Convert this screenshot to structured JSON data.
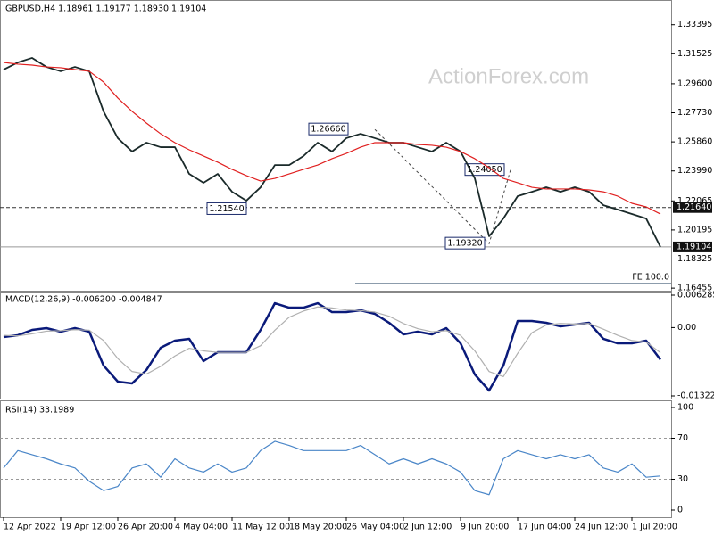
{
  "chart_data": [
    {
      "type": "line",
      "title": "GBPUSD,H4  1.18961 1.19177 1.18930 1.19104",
      "watermark": "ActionForex.com",
      "categories": [
        "12 Apr 2022",
        null,
        null,
        null,
        "19 Apr 12:00",
        null,
        null,
        null,
        "26 Apr 20:00",
        null,
        null,
        null,
        "4 May 04:00",
        null,
        null,
        null,
        "11 May 12:00",
        null,
        null,
        null,
        "18 May 20:00",
        null,
        null,
        null,
        "26 May 04:00",
        null,
        null,
        null,
        "2 Jun 12:00",
        null,
        null,
        null,
        "9 Jun 20:00",
        null,
        null,
        null,
        "17 Jun 04:00",
        null,
        null,
        null,
        "24 Jun 12:00",
        null,
        null,
        null,
        "1 Jul 20:00",
        null,
        null
      ],
      "series": [
        {
          "color": "#1a2a2a",
          "values": [
            1.3051,
            1.3097,
            1.3126,
            1.3068,
            1.304,
            1.3068,
            1.304,
            1.2782,
            1.261,
            1.2524,
            1.2581,
            1.2552,
            1.2552,
            1.238,
            1.2323,
            1.238,
            1.2265,
            1.2208,
            1.2294,
            1.2437,
            1.2437,
            1.2495,
            1.2581,
            1.2524,
            1.261,
            1.2638,
            1.261,
            1.2581,
            1.2581,
            1.2552,
            1.2524,
            1.2581,
            1.2524,
            1.2351,
            1.1979,
            1.2093,
            1.2237,
            1.2265,
            1.2294,
            1.2265,
            1.2294,
            1.2265,
            1.2179,
            1.2151,
            1.2122,
            1.2093,
            1.19104
          ]
        },
        {
          "color": "#e02020",
          "values": [
            1.3097,
            1.3086,
            1.308,
            1.3068,
            1.3063,
            1.3051,
            1.304,
            1.2971,
            1.2868,
            1.2782,
            1.2707,
            1.2638,
            1.2581,
            1.2535,
            1.2495,
            1.2455,
            1.2409,
            1.2369,
            1.2334,
            1.2351,
            1.238,
            1.2409,
            1.2437,
            1.2478,
            1.2512,
            1.2552,
            1.2581,
            1.2581,
            1.2581,
            1.2569,
            1.2564,
            1.2552,
            1.2524,
            1.2478,
            1.242,
            1.2351,
            1.2323,
            1.2294,
            1.2283,
            1.2283,
            1.2283,
            1.2277,
            1.2265,
            1.2237,
            1.2191,
            1.2168,
            1.2122
          ]
        }
      ],
      "ylim": [
        1.1629,
        1.3487
      ],
      "yticks": [
        1.33395,
        1.31525,
        {
          "value": 1.296,
          "label": "1.29600"
        },
        {
          "value": 1.2773,
          "label": "1.27730"
        },
        {
          "value": 1.2586,
          "label": "1.25860"
        },
        {
          "value": 1.2399,
          "label": "1.23990"
        },
        1.22065,
        1.20195,
        1.18325,
        1.16455
      ],
      "levels": [
        {
          "value": 1.2164,
          "label": "1.21640"
        },
        {
          "value": 1.19104,
          "label": "1.19104"
        }
      ],
      "annotations": [
        {
          "value": 1.2666,
          "label": "1.26660"
        },
        {
          "value": 1.2154,
          "label": "1.21540"
        },
        {
          "value": 1.2405,
          "label": "1.24050"
        },
        {
          "value": 1.1932,
          "label": "1.19320"
        }
      ],
      "fe": {
        "value": 1.1675,
        "label": "FE 100.0"
      }
    },
    {
      "type": "line",
      "title": "MACD(12,26,9) -0.006200 -0.004847",
      "series": [
        {
          "color": "#0a1a7a",
          "values": [
            -0.00183,
            -0.00148,
            -0.00045,
            -0.0001,
            -0.00079,
            -0.0001,
            -0.00079,
            -0.00735,
            -0.01046,
            -0.0108,
            -0.00822,
            -0.0039,
            -0.00252,
            -0.00217,
            -0.00649,
            -0.00476,
            -0.00476,
            -0.00476,
            -0.00045,
            0.00473,
            0.00386,
            0.00386,
            0.00473,
            0.003,
            0.003,
            0.00335,
            0.00266,
            0.00093,
            -0.00131,
            -0.00079,
            -0.00131,
            -0.0001,
            -0.00304,
            -0.00908,
            -0.01219,
            -0.00735,
            0.00128,
            0.00128,
            0.00093,
            0.00024,
            0.00059,
            0.00093,
            -0.00217,
            -0.00304,
            -0.00304,
            -0.00252,
            -0.0062
          ]
        },
        {
          "color": "#b0b0b0",
          "values": [
            -0.0015,
            -0.0016,
            -0.0012,
            -0.0007,
            -0.0006,
            -0.0004,
            -0.0005,
            -0.0025,
            -0.006,
            -0.0085,
            -0.009,
            -0.0075,
            -0.0055,
            -0.004,
            -0.0045,
            -0.0048,
            -0.0048,
            -0.0048,
            -0.0035,
            -0.0005,
            0.002,
            0.0032,
            0.004,
            0.0038,
            0.0034,
            0.0033,
            0.003,
            0.0022,
            0.0008,
            -0.0002,
            -0.0008,
            -0.0006,
            -0.0015,
            -0.0045,
            -0.0085,
            -0.0095,
            -0.005,
            -0.001,
            0.0005,
            0.0008,
            0.0007,
            0.0008,
            -0.0003,
            -0.0015,
            -0.0025,
            -0.0028,
            -0.004847
          ]
        }
      ],
      "ylim": [
        -0.013223,
        0.006285
      ],
      "yticks": [
        0.006285,
        {
          "value": 0,
          "label": "0.00"
        },
        -0.013223
      ]
    },
    {
      "type": "line",
      "title": "RSI(14) 33.1989",
      "series": [
        {
          "color": "#4a86c8",
          "values": [
            41,
            58,
            54,
            50,
            45,
            41,
            28,
            19,
            23,
            41,
            45,
            32,
            50,
            41,
            37,
            45,
            37,
            41,
            58,
            67,
            63,
            58,
            58,
            58,
            58,
            63,
            54,
            45,
            50,
            45,
            50,
            45,
            37,
            19,
            15,
            50,
            58,
            54,
            50,
            54,
            50,
            54,
            41,
            37,
            45,
            32,
            33.1989
          ]
        }
      ],
      "ylim": [
        0,
        100
      ],
      "yticks": [
        100,
        70,
        30,
        0
      ],
      "levels": [
        70,
        30
      ]
    }
  ]
}
